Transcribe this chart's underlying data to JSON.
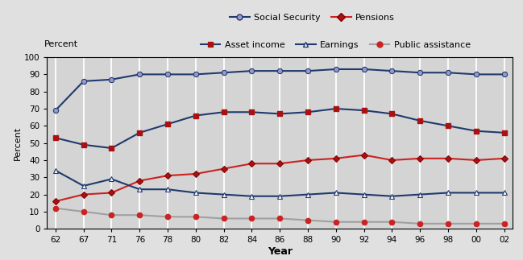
{
  "x_indices": [
    0,
    1,
    2,
    3,
    4,
    5,
    6,
    7,
    8,
    9,
    10,
    11,
    12,
    13,
    14,
    15,
    16
  ],
  "year_labels": [
    "62",
    "67",
    "71",
    "76",
    "78",
    "80",
    "82",
    "84",
    "86",
    "88",
    "90",
    "92",
    "94",
    "96",
    "98",
    "00",
    "02"
  ],
  "social_security": [
    69,
    86,
    87,
    90,
    90,
    90,
    91,
    92,
    92,
    92,
    93,
    93,
    92,
    91,
    91,
    90,
    90
  ],
  "asset_income": [
    53,
    49,
    47,
    56,
    61,
    66,
    68,
    68,
    67,
    68,
    70,
    69,
    67,
    63,
    60,
    57,
    56
  ],
  "pensions": [
    16,
    20,
    21,
    28,
    31,
    32,
    35,
    38,
    38,
    40,
    41,
    43,
    40,
    41,
    41,
    40,
    41
  ],
  "earnings": [
    34,
    25,
    29,
    23,
    23,
    21,
    20,
    19,
    19,
    20,
    21,
    20,
    19,
    20,
    21,
    21,
    21
  ],
  "public_assistance": [
    12,
    10,
    8,
    8,
    7,
    7,
    6,
    6,
    6,
    5,
    4,
    4,
    4,
    3,
    3,
    3,
    3
  ],
  "navy": "#1f3a6e",
  "red": "#cc2222",
  "gray": "#a0a0a0",
  "lavender": "#9999cc",
  "plot_bg": "#d4d4d4",
  "fig_bg": "#e0e0e0",
  "ylabel": "Percent",
  "xlabel": "Year",
  "ylim": [
    0,
    100
  ],
  "yticks": [
    0,
    10,
    20,
    30,
    40,
    50,
    60,
    70,
    80,
    90,
    100
  ]
}
